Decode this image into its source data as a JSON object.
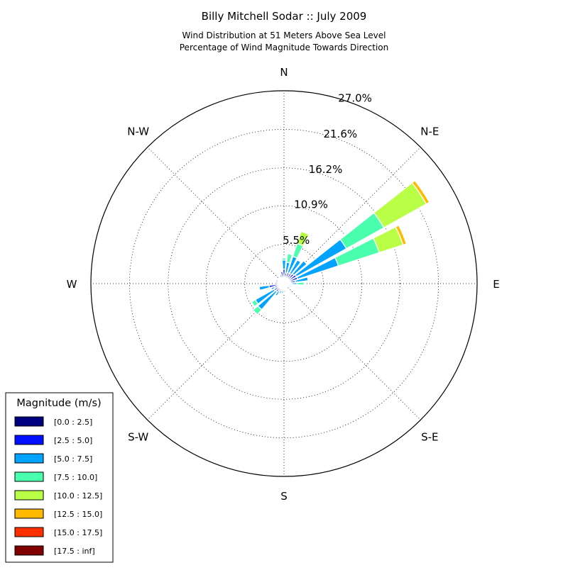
{
  "chart_data": {
    "type": "windrose",
    "title": "Billy Mitchell Sodar :: July 2009",
    "subtitle_lines": [
      "Wind Distribution at 51 Meters Above Sea Level",
      "Percentage of Wind Magnitude Towards Direction"
    ],
    "direction_labels": [
      "N",
      "N-E",
      "E",
      "S-E",
      "S",
      "S-W",
      "W",
      "N-W"
    ],
    "radial_ticks": [
      5.5,
      10.9,
      16.2,
      21.6,
      27.0
    ],
    "radial_tick_labels": [
      "5.5%",
      "10.9%",
      "16.2%",
      "21.6%",
      "27.0%"
    ],
    "rmax": 27.0,
    "grid": true,
    "legend": {
      "title": "Magnitude (m/s)",
      "placement": "bottom-left",
      "bins": [
        {
          "label": "[0.0 : 2.5]",
          "color": "#000080"
        },
        {
          "label": "[2.5 : 5.0]",
          "color": "#0010ff"
        },
        {
          "label": "[5.0 : 7.5]",
          "color": "#00a4ff"
        },
        {
          "label": "[7.5 : 10.0]",
          "color": "#49ffad"
        },
        {
          "label": "[10.0 : 12.5]",
          "color": "#b9ff45"
        },
        {
          "label": "[12.5 : 15.0]",
          "color": "#ffb900"
        },
        {
          "label": "[15.0 : 17.5]",
          "color": "#ff3000"
        },
        {
          "label": "[17.5 : inf]",
          "color": "#800000"
        }
      ]
    },
    "directions_deg": [
      0,
      11.25,
      22.5,
      33.75,
      45,
      56.25,
      67.5,
      78.75,
      90,
      101.25,
      112.5,
      123.75,
      135,
      146.25,
      157.5,
      168.75,
      180,
      191.25,
      202.5,
      213.75,
      225,
      236.25,
      247.5,
      258.75,
      270,
      281.25,
      292.5,
      303.75,
      315,
      326.25,
      337.5,
      348.75
    ],
    "cumulative_percent": [
      [
        0.3,
        2.0,
        3.3,
        3.6,
        3.6,
        3.6,
        3.6,
        3.6
      ],
      [
        0.3,
        1.5,
        3.0,
        4.2,
        4.2,
        4.2,
        4.2,
        4.2
      ],
      [
        0.3,
        1.6,
        4.0,
        5.9,
        7.7,
        7.7,
        7.7,
        7.7
      ],
      [
        0.3,
        1.6,
        3.8,
        3.8,
        3.8,
        3.8,
        3.8,
        3.8
      ],
      [
        0.3,
        1.8,
        4.2,
        4.2,
        4.2,
        4.2,
        4.2,
        4.2
      ],
      [
        0.3,
        2.0,
        10.0,
        16.0,
        22.8,
        23.3,
        23.3,
        23.3
      ],
      [
        0.3,
        2.0,
        8.0,
        14.0,
        17.5,
        18.0,
        18.0,
        18.0
      ],
      [
        0.3,
        1.6,
        3.4,
        3.4,
        3.4,
        3.4,
        3.4,
        3.4
      ],
      [
        0.3,
        1.0,
        1.8,
        2.8,
        2.8,
        2.8,
        2.8,
        2.8
      ],
      [
        0.3,
        0.7,
        1.1,
        1.1,
        1.1,
        1.1,
        1.1,
        1.1
      ],
      [
        0.3,
        0.7,
        1.2,
        1.2,
        1.2,
        1.2,
        1.2,
        1.2
      ],
      [
        0.3,
        0.6,
        0.6,
        0.6,
        0.6,
        0.6,
        0.6,
        0.6
      ],
      [
        0.3,
        0.5,
        0.5,
        0.5,
        0.5,
        0.5,
        0.5,
        0.5
      ],
      [
        0.3,
        0.5,
        0.5,
        0.5,
        0.5,
        0.5,
        0.5,
        0.5
      ],
      [
        0.3,
        0.6,
        0.6,
        0.6,
        0.6,
        0.6,
        0.6,
        0.6
      ],
      [
        0.3,
        0.6,
        1.1,
        1.1,
        1.1,
        1.1,
        1.1,
        1.1
      ],
      [
        0.3,
        0.8,
        1.3,
        1.3,
        1.3,
        1.3,
        1.3,
        1.3
      ],
      [
        0.3,
        0.9,
        1.4,
        1.4,
        1.4,
        1.4,
        1.4,
        1.4
      ],
      [
        0.3,
        1.0,
        1.5,
        1.5,
        1.5,
        1.5,
        1.5,
        1.5
      ],
      [
        0.3,
        1.2,
        2.0,
        2.0,
        2.0,
        2.0,
        2.0,
        2.0
      ],
      [
        0.3,
        1.5,
        4.8,
        5.7,
        5.7,
        5.7,
        5.7,
        5.7
      ],
      [
        0.3,
        1.6,
        4.6,
        5.2,
        5.2,
        5.2,
        5.2,
        5.2
      ],
      [
        0.3,
        1.4,
        1.9,
        1.9,
        1.9,
        1.9,
        1.9,
        1.9
      ],
      [
        0.3,
        2.1,
        3.5,
        3.5,
        3.5,
        3.5,
        3.5,
        3.5
      ],
      [
        0.3,
        1.3,
        1.3,
        1.3,
        1.3,
        1.3,
        1.3,
        1.3
      ],
      [
        0.3,
        1.2,
        1.2,
        1.2,
        1.2,
        1.2,
        1.2,
        1.2
      ],
      [
        0.3,
        1.2,
        1.2,
        1.2,
        1.2,
        1.2,
        1.2,
        1.2
      ],
      [
        0.3,
        0.9,
        0.9,
        0.9,
        0.9,
        0.9,
        0.9,
        0.9
      ],
      [
        0.3,
        0.9,
        0.9,
        0.9,
        0.9,
        0.9,
        0.9,
        0.9
      ],
      [
        0.3,
        1.0,
        1.0,
        1.0,
        1.0,
        1.0,
        1.0,
        1.0
      ],
      [
        0.3,
        1.3,
        1.3,
        1.3,
        1.3,
        1.3,
        1.3,
        1.3
      ],
      [
        0.3,
        1.7,
        1.7,
        1.7,
        1.7,
        1.7,
        1.7,
        1.7
      ]
    ]
  }
}
